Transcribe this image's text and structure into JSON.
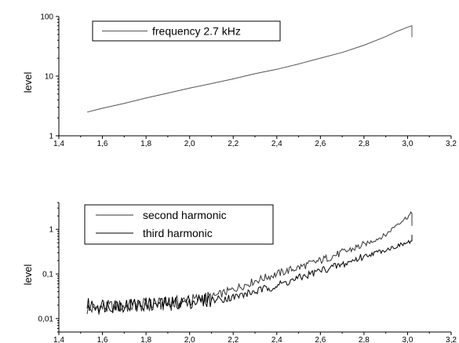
{
  "chart_data": [
    {
      "type": "line",
      "xlabel": "",
      "ylabel": "level",
      "xlim": [
        1.4,
        3.2
      ],
      "ylim": [
        1,
        100
      ],
      "yscale": "log",
      "x_ticks": [
        "1,4",
        "1,6",
        "1,8",
        "2,0",
        "2,2",
        "2,4",
        "2,6",
        "2,8",
        "3,0",
        "3,2"
      ],
      "y_ticks": [
        "1",
        "10",
        "100"
      ],
      "legend_position": "top-left",
      "grid": false,
      "series": [
        {
          "name": "frequency 2.7 kHz",
          "color": "#555555",
          "x": [
            1.53,
            1.6,
            1.7,
            1.8,
            1.9,
            2.0,
            2.1,
            2.2,
            2.3,
            2.4,
            2.5,
            2.6,
            2.7,
            2.8,
            2.9,
            2.95,
            3.0,
            3.02,
            3.02
          ],
          "y": [
            2.5,
            2.9,
            3.5,
            4.3,
            5.2,
            6.3,
            7.5,
            9.0,
            11,
            13,
            16,
            20,
            25,
            33,
            46,
            56,
            66,
            70,
            45
          ]
        }
      ]
    },
    {
      "type": "line",
      "xlabel": "",
      "ylabel": "level",
      "xlim": [
        1.4,
        3.2
      ],
      "ylim": [
        0.005,
        4
      ],
      "yscale": "log",
      "x_ticks": [
        "1,4",
        "1,6",
        "1,8",
        "2,0",
        "2,2",
        "2,4",
        "2,6",
        "2,8",
        "3,0",
        "3,2"
      ],
      "y_ticks": [
        "0,01",
        "0,1",
        "1"
      ],
      "legend_position": "top-left",
      "grid": false,
      "series": [
        {
          "name": "second harmonic",
          "color": "#333333",
          "x": [
            1.53,
            1.6,
            1.7,
            1.8,
            1.9,
            2.0,
            2.1,
            2.2,
            2.3,
            2.4,
            2.5,
            2.6,
            2.7,
            2.8,
            2.9,
            2.95,
            3.0,
            3.02,
            3.02
          ],
          "y": [
            0.016,
            0.018,
            0.019,
            0.02,
            0.021,
            0.025,
            0.03,
            0.045,
            0.07,
            0.1,
            0.14,
            0.2,
            0.3,
            0.45,
            0.75,
            1.3,
            1.9,
            2.3,
            1.2
          ]
        },
        {
          "name": "third harmonic",
          "color": "#000000",
          "x": [
            1.53,
            1.6,
            1.7,
            1.8,
            1.9,
            2.0,
            2.1,
            2.2,
            2.3,
            2.4,
            2.5,
            2.6,
            2.7,
            2.8,
            2.9,
            3.0,
            3.02,
            3.02
          ],
          "y": [
            0.02,
            0.02,
            0.02,
            0.021,
            0.022,
            0.024,
            0.026,
            0.03,
            0.04,
            0.055,
            0.08,
            0.12,
            0.16,
            0.25,
            0.35,
            0.5,
            0.55,
            0.75
          ]
        }
      ]
    }
  ]
}
